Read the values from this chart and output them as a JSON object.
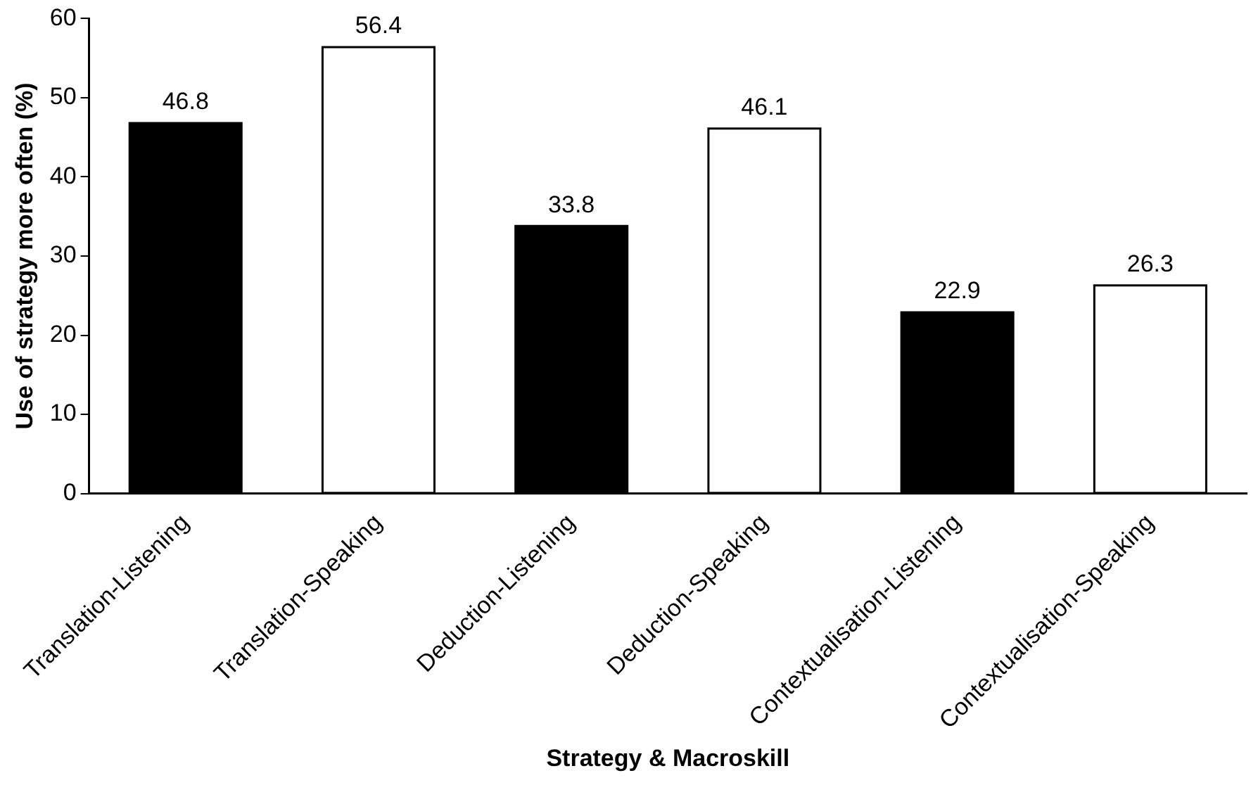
{
  "chart_data": {
    "type": "bar",
    "xlabel": "Strategy & Macroskill",
    "ylabel": "Use of strategy more often (%)",
    "categories": [
      "Translation-Listening",
      "Translation-Speaking",
      "Deduction-Listening",
      "Deduction-Speaking",
      "Contextualisation-Listening",
      "Contextualisation-Speaking"
    ],
    "values": [
      46.8,
      56.4,
      33.8,
      46.1,
      22.9,
      26.3
    ],
    "colors": [
      "#000000",
      "#ffffff",
      "#000000",
      "#ffffff",
      "#000000",
      "#ffffff"
    ],
    "ylim": [
      0,
      60
    ],
    "yticks": [
      0,
      10,
      20,
      30,
      40,
      50,
      60
    ],
    "grid": false,
    "legend": false,
    "data_labels": true
  }
}
